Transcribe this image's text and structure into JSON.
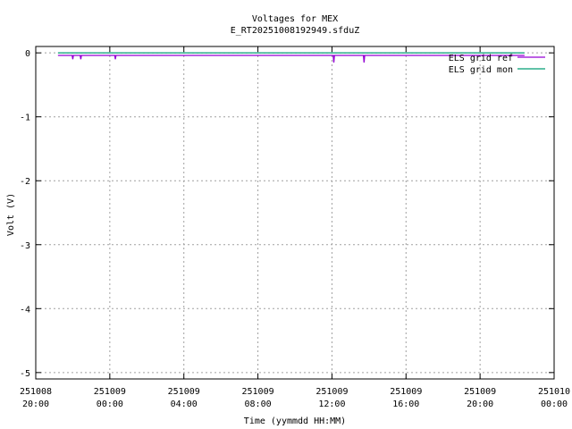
{
  "chart_data": {
    "type": "line",
    "title": "Voltages for MEX",
    "subtitle": "E_RT20251008192949.sfduZ",
    "xlabel": "Time (yymmdd HH:MM)",
    "ylabel": "Volt (V)",
    "xlim": [
      "2025-10-08 20:00",
      "2025-10-10 00:00"
    ],
    "ylim": [
      -5.1,
      0.1
    ],
    "grid": true,
    "legend_position": "top-right",
    "x_ticks": [
      {
        "value": "2025-10-08 20:00",
        "line1": "251008",
        "line2": "20:00"
      },
      {
        "value": "2025-10-09 00:00",
        "line1": "251009",
        "line2": "00:00"
      },
      {
        "value": "2025-10-09 04:00",
        "line1": "251009",
        "line2": "04:00"
      },
      {
        "value": "2025-10-09 08:00",
        "line1": "251009",
        "line2": "08:00"
      },
      {
        "value": "2025-10-09 12:00",
        "line1": "251009",
        "line2": "12:00"
      },
      {
        "value": "2025-10-09 16:00",
        "line1": "251009",
        "line2": "16:00"
      },
      {
        "value": "2025-10-09 20:00",
        "line1": "251009",
        "line2": "20:00"
      },
      {
        "value": "2025-10-10 00:00",
        "line1": "251010",
        "line2": "00:00"
      }
    ],
    "y_ticks": [
      0,
      -1,
      -2,
      -3,
      -4,
      -5
    ],
    "series": [
      {
        "name": "ELS grid ref",
        "color": "#9400d3",
        "points": [
          [
            "2025-10-08 21:12",
            -0.04
          ],
          [
            "2025-10-08 21:58",
            -0.04
          ],
          [
            "2025-10-08 22:00",
            -0.1
          ],
          [
            "2025-10-08 22:02",
            -0.04
          ],
          [
            "2025-10-08 22:24",
            -0.04
          ],
          [
            "2025-10-08 22:26",
            -0.1
          ],
          [
            "2025-10-08 22:28",
            -0.04
          ],
          [
            "2025-10-09 00:16",
            -0.04
          ],
          [
            "2025-10-09 00:18",
            -0.1
          ],
          [
            "2025-10-09 00:20",
            -0.04
          ],
          [
            "2025-10-09 12:04",
            -0.04
          ],
          [
            "2025-10-09 12:06",
            -0.15
          ],
          [
            "2025-10-09 12:08",
            -0.04
          ],
          [
            "2025-10-09 13:42",
            -0.04
          ],
          [
            "2025-10-09 13:44",
            -0.15
          ],
          [
            "2025-10-09 13:46",
            -0.04
          ],
          [
            "2025-10-09 22:24",
            -0.04
          ]
        ]
      },
      {
        "name": "ELS grid mon",
        "color": "#009e73",
        "points": [
          [
            "2025-10-08 21:12",
            0.0
          ],
          [
            "2025-10-09 22:24",
            0.0
          ]
        ]
      }
    ]
  }
}
